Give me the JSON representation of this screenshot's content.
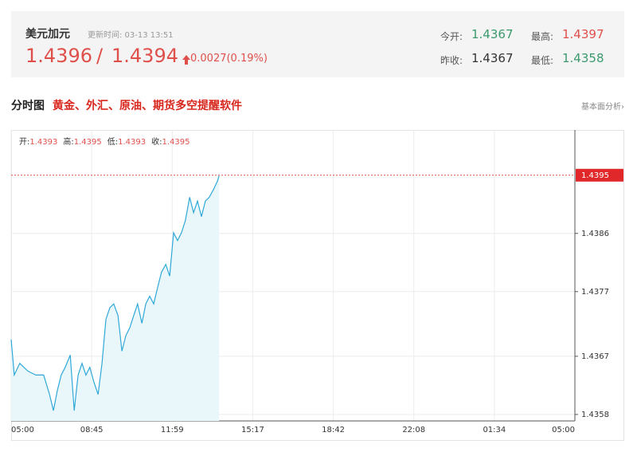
{
  "header": {
    "title": "美元加元",
    "update_time": "更新时间: 03-13 13:51",
    "bid": "1.4396",
    "separator": "/",
    "ask": "1.4394",
    "change": "0.0027(0.19%)",
    "stats": [
      {
        "label": "今开:",
        "value": "1.4367",
        "color": "#3a9a6e"
      },
      {
        "label": "最高:",
        "value": "1.4397",
        "color": "#e0504b"
      },
      {
        "label": "昨收:",
        "value": "1.4367",
        "color": "#333333"
      },
      {
        "label": "最低:",
        "value": "1.4358",
        "color": "#3a9a6e"
      }
    ]
  },
  "section": {
    "title": "分时图",
    "promo": "黄金、外汇、原油、期货多空提醒软件",
    "link": "基本面分析›"
  },
  "chart_data": {
    "type": "line",
    "color": "#2fa8d8",
    "area_color": "#e9f7fb",
    "grid": true,
    "ohlc": [
      {
        "label": "开:",
        "value": 1.4393
      },
      {
        "label": "高:",
        "value": 1.4395
      },
      {
        "label": "低:",
        "value": 1.4393
      },
      {
        "label": "收:",
        "value": 1.4395
      }
    ],
    "last_price": 1.4395,
    "x": [
      0,
      8,
      22,
      43,
      63,
      83,
      98,
      108,
      118,
      128,
      138,
      151,
      161,
      171,
      181,
      191,
      201,
      212,
      222,
      232,
      242,
      252,
      262,
      273,
      283,
      293,
      303,
      313,
      323,
      334,
      344,
      354,
      364,
      374,
      384,
      395,
      405,
      415,
      425,
      435,
      445,
      456,
      466,
      476,
      486,
      496,
      506,
      517,
      527,
      531
    ],
    "values": [
      1.43696,
      1.43641,
      1.43659,
      1.43647,
      1.43641,
      1.43641,
      1.43611,
      1.43586,
      1.43617,
      1.43641,
      1.43653,
      1.43672,
      1.43586,
      1.43641,
      1.43659,
      1.43641,
      1.43653,
      1.43629,
      1.43611,
      1.43659,
      1.43727,
      1.43745,
      1.43751,
      1.43733,
      1.43678,
      1.43702,
      1.43714,
      1.43733,
      1.43751,
      1.43721,
      1.43751,
      1.43763,
      1.43751,
      1.43776,
      1.438,
      1.43812,
      1.43794,
      1.43861,
      1.43849,
      1.43861,
      1.4388,
      1.43916,
      1.43892,
      1.4391,
      1.43886,
      1.4391,
      1.43916,
      1.43928,
      1.43941,
      1.43949
    ],
    "xlim": [
      0,
      1440
    ],
    "xticks": [
      {
        "value": 0,
        "label": "05:00"
      },
      {
        "value": 205.7,
        "label": "08:45"
      },
      {
        "value": 411.4,
        "label": "11:59"
      },
      {
        "value": 617.1,
        "label": "15:17"
      },
      {
        "value": 822.9,
        "label": "18:42"
      },
      {
        "value": 1028.6,
        "label": "22:08"
      },
      {
        "value": 1234.3,
        "label": "01:34"
      },
      {
        "value": 1440,
        "label": "05:00"
      }
    ],
    "ylim": [
      1.4357,
      1.4402
    ],
    "yticks": [
      1.4358,
      1.4367,
      1.4377,
      1.4386
    ]
  }
}
